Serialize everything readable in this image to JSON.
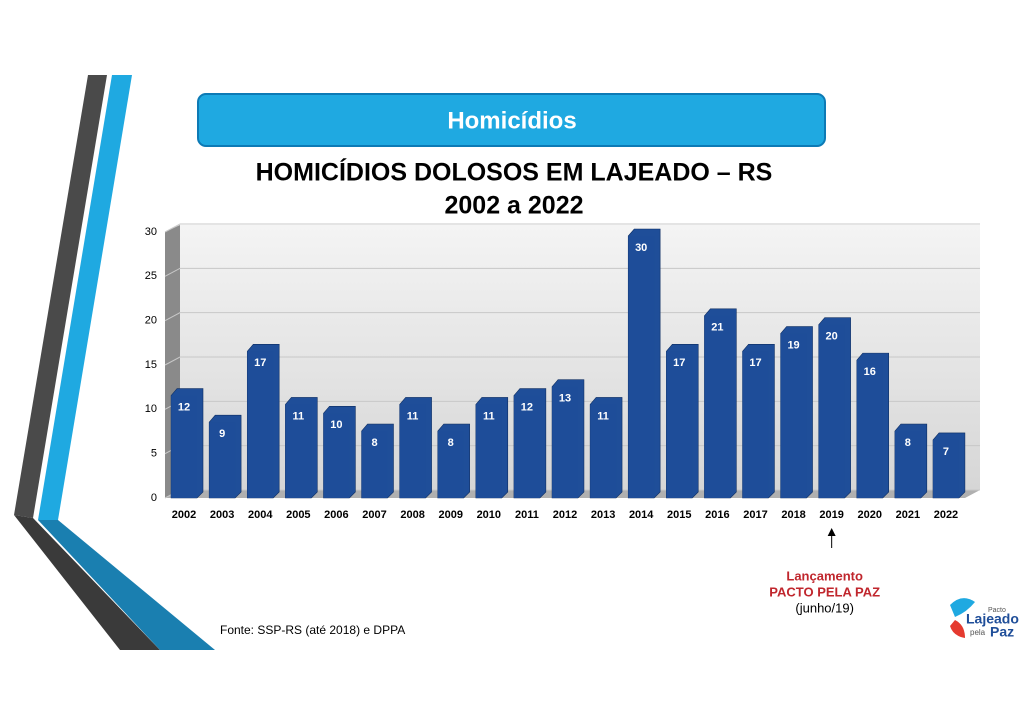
{
  "banner": "Homicídios",
  "chart_data": {
    "type": "bar",
    "title": "HOMICÍDIOS DOLOSOS EM LAJEADO – RS",
    "subtitle": "2002 a 2022",
    "categories": [
      "2002",
      "2003",
      "2004",
      "2005",
      "2006",
      "2007",
      "2008",
      "2009",
      "2010",
      "2011",
      "2012",
      "2013",
      "2014",
      "2015",
      "2016",
      "2017",
      "2018",
      "2019",
      "2020",
      "2021",
      "2022"
    ],
    "values": [
      12,
      9,
      17,
      11,
      10,
      8,
      11,
      8,
      11,
      12,
      13,
      11,
      30,
      17,
      21,
      17,
      19,
      20,
      16,
      8,
      7
    ],
    "color": "#1f4e99",
    "ylim": [
      0,
      30
    ],
    "yticks": [
      0,
      5,
      10,
      15,
      20,
      25,
      30
    ],
    "grid": true,
    "annotation": {
      "category": "2019",
      "lines": [
        "Lançamento",
        "PACTO PELA PAZ",
        "(junho/19)"
      ]
    }
  },
  "source": "Fonte: SSP-RS (até 2018) e DPPA",
  "logo": [
    "Pacto",
    "Lajeado",
    "pela",
    "Paz"
  ]
}
